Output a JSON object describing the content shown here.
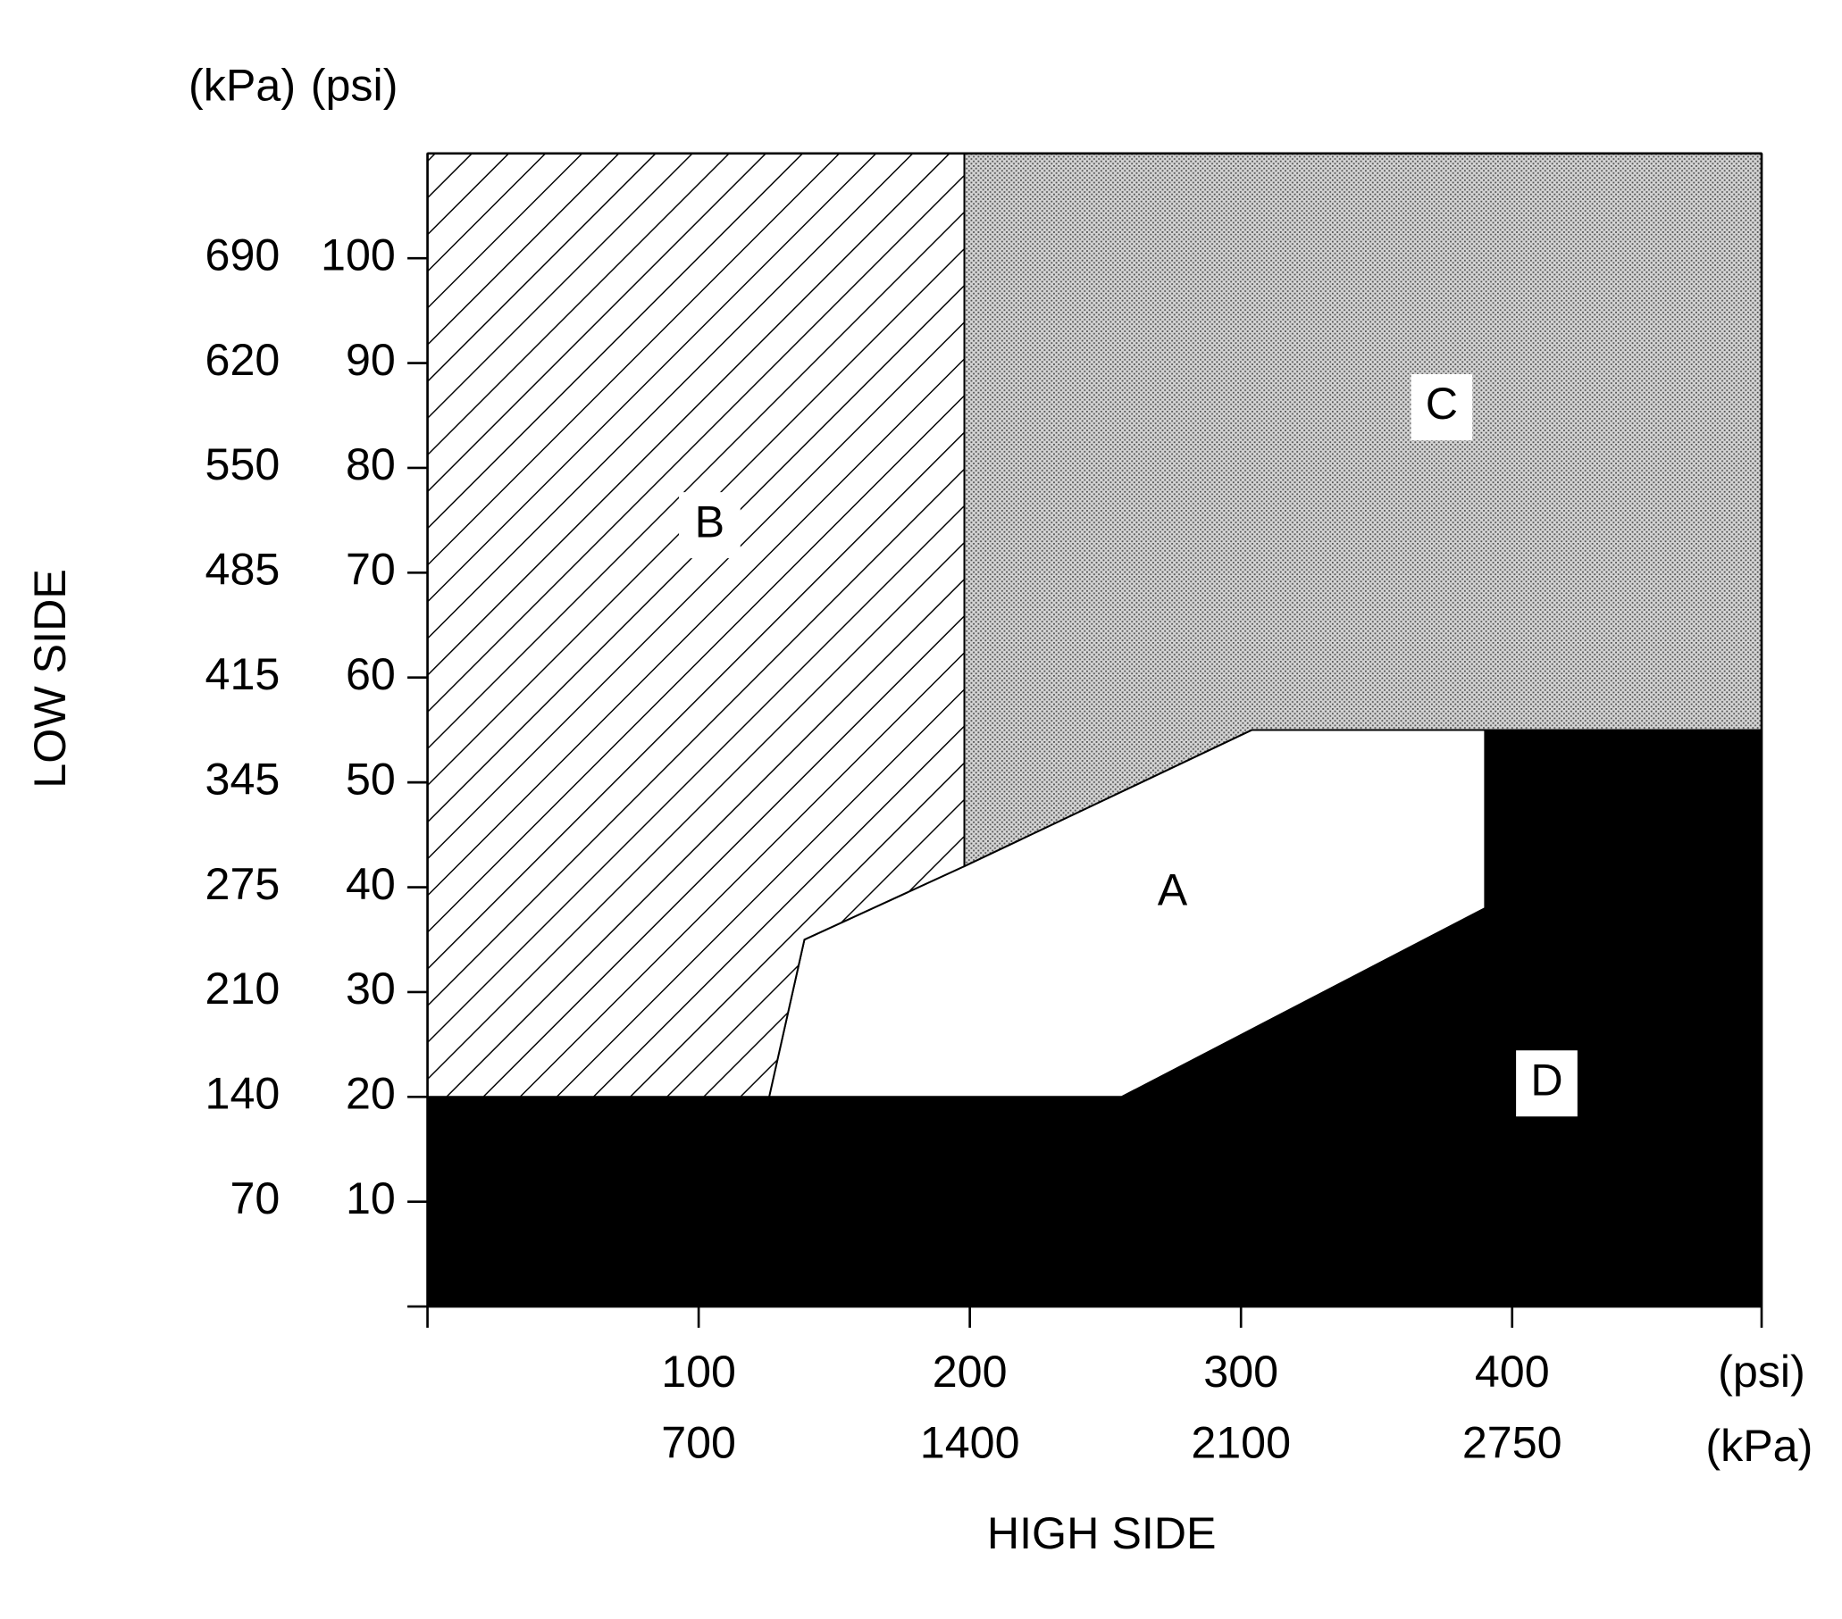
{
  "chart_data": {
    "type": "region",
    "x_label": "HIGH SIDE",
    "y_label": "LOW SIDE",
    "x_units": [
      "(psi)",
      "(kPa)"
    ],
    "y_units": [
      "(kPa)",
      "(psi)"
    ],
    "xlim": [
      0,
      492
    ],
    "ylim": [
      0,
      110
    ],
    "xticks": [
      100,
      200,
      300,
      400
    ],
    "xticks_kpa": [
      {
        "value": 100,
        "label": "700"
      },
      {
        "value": 200,
        "label": "1400"
      },
      {
        "value": 300,
        "label": "2100"
      },
      {
        "value": 400,
        "label": "2750"
      }
    ],
    "yticks": [
      10,
      20,
      30,
      40,
      50,
      60,
      70,
      80,
      90,
      100
    ],
    "yticks_kpa": [
      {
        "value": 10,
        "label": "70"
      },
      {
        "value": 20,
        "label": "140"
      },
      {
        "value": 30,
        "label": "210"
      },
      {
        "value": 40,
        "label": "275"
      },
      {
        "value": 50,
        "label": "345"
      },
      {
        "value": 60,
        "label": "415"
      },
      {
        "value": 70,
        "label": "485"
      },
      {
        "value": 80,
        "label": "550"
      },
      {
        "value": 90,
        "label": "620"
      },
      {
        "value": 100,
        "label": "690"
      }
    ],
    "regions": [
      {
        "name": "D",
        "fill": "black",
        "points": [
          [
            0,
            0
          ],
          [
            492,
            0
          ],
          [
            492,
            55
          ],
          [
            390,
            55
          ],
          [
            390,
            38
          ],
          [
            256,
            20
          ],
          [
            0,
            20
          ]
        ]
      },
      {
        "name": "A",
        "fill": "white",
        "points": [
          [
            126,
            20
          ],
          [
            139,
            35
          ],
          [
            198,
            42
          ],
          [
            304,
            55
          ],
          [
            390,
            55
          ],
          [
            390,
            38
          ],
          [
            256,
            20
          ]
        ]
      },
      {
        "name": "B",
        "fill": "hatch",
        "points": [
          [
            0,
            110
          ],
          [
            198,
            110
          ],
          [
            198,
            42
          ],
          [
            139,
            35
          ],
          [
            126,
            20
          ],
          [
            0,
            20
          ]
        ]
      },
      {
        "name": "C",
        "fill": "dots",
        "points": [
          [
            198,
            110
          ],
          [
            492,
            110
          ],
          [
            492,
            55
          ],
          [
            304,
            55
          ],
          [
            198,
            42
          ]
        ]
      }
    ]
  }
}
